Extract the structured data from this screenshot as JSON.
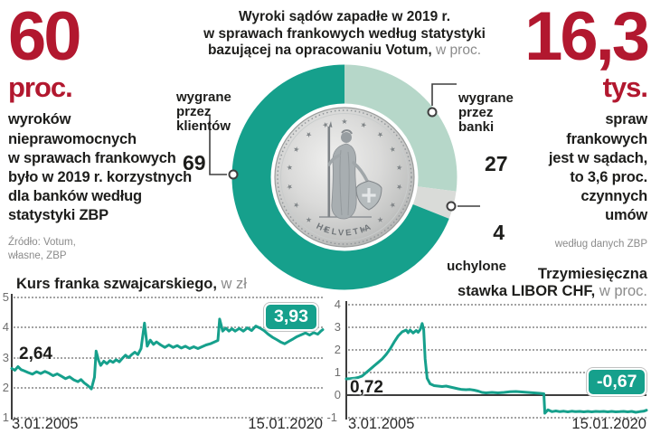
{
  "colors": {
    "red": "#b2182f",
    "teal": "#16a08c",
    "mint": "#b6d7c9",
    "gray_slice": "#d9dbd8",
    "muted": "#8b8b8b"
  },
  "left_stat": {
    "value": "60",
    "unit": "proc.",
    "description": "wyroków\nnieprawomocnych\nw sprawach frankowych\nbyło w 2019 r. korzystnych\ndla banków według\nstatystyki ZBP",
    "source": "Źródło: Votum,\nwłasne, ZBP"
  },
  "right_stat": {
    "value": "16,3",
    "unit": "tys.",
    "description": "spraw\nfrankowych\njest w sądach,\nto 3,6 proc.\nczynnych\numów",
    "source": "według danych ZBP"
  },
  "donut_title": {
    "line1": "Wyroki sądów zapadłe w 2019 r.",
    "line2": "w sprawach frankowych według statystyki",
    "line3_bold": "bazującej na opracowaniu Votum,",
    "line3_light": "w proc."
  },
  "coin": {
    "legend": "HELVETIA"
  },
  "chart_data": [
    {
      "type": "pie",
      "variant": "donut",
      "start_angle": "top",
      "direction": "clockwise",
      "title": "Wyroki sądów zapadłe w 2019 r. w sprawach frankowych według statystyki bazującej na opracowaniu Votum, w proc.",
      "slices": [
        {
          "label": "wygrane\nprzez\nbanki",
          "value": 27,
          "color": "#b6d7c9"
        },
        {
          "label": "uchylone",
          "value": 4,
          "color": "#d9dbd8"
        },
        {
          "label": "wygrane\nprzez\nklientów",
          "value": 69,
          "color": "#16a08c"
        }
      ]
    },
    {
      "type": "line",
      "title_bold": "Kurs franka szwajcarskiego,",
      "title_light": "w zł",
      "color": "#16a08c",
      "x_range": [
        2005.0,
        2020.04
      ],
      "ylim": [
        1,
        5
      ],
      "yticks": [
        5,
        4,
        3,
        2,
        1
      ],
      "grid": "dotted",
      "x_tick_labels": [
        "3.01.2005",
        "15.01.2020"
      ],
      "first_label": "2,64",
      "last_label": "3,93",
      "points": [
        [
          2005.0,
          2.64
        ],
        [
          2005.15,
          2.58
        ],
        [
          2005.3,
          2.7
        ],
        [
          2005.45,
          2.6
        ],
        [
          2005.6,
          2.56
        ],
        [
          2005.8,
          2.5
        ],
        [
          2006.0,
          2.45
        ],
        [
          2006.2,
          2.53
        ],
        [
          2006.4,
          2.47
        ],
        [
          2006.6,
          2.54
        ],
        [
          2006.8,
          2.48
        ],
        [
          2007.0,
          2.4
        ],
        [
          2007.2,
          2.46
        ],
        [
          2007.4,
          2.38
        ],
        [
          2007.6,
          2.3
        ],
        [
          2007.8,
          2.36
        ],
        [
          2008.0,
          2.26
        ],
        [
          2008.2,
          2.2
        ],
        [
          2008.35,
          2.27
        ],
        [
          2008.5,
          2.16
        ],
        [
          2008.7,
          2.06
        ],
        [
          2008.85,
          1.96
        ],
        [
          2009.0,
          2.35
        ],
        [
          2009.08,
          3.22
        ],
        [
          2009.2,
          2.9
        ],
        [
          2009.3,
          2.74
        ],
        [
          2009.45,
          2.88
        ],
        [
          2009.6,
          2.8
        ],
        [
          2009.75,
          2.9
        ],
        [
          2009.9,
          2.84
        ],
        [
          2010.05,
          2.93
        ],
        [
          2010.2,
          2.86
        ],
        [
          2010.35,
          2.98
        ],
        [
          2010.5,
          3.08
        ],
        [
          2010.65,
          3.0
        ],
        [
          2010.8,
          3.1
        ],
        [
          2010.95,
          3.18
        ],
        [
          2011.1,
          3.1
        ],
        [
          2011.25,
          3.3
        ],
        [
          2011.42,
          4.15
        ],
        [
          2011.55,
          3.38
        ],
        [
          2011.7,
          3.58
        ],
        [
          2011.85,
          3.44
        ],
        [
          2012.0,
          3.52
        ],
        [
          2012.2,
          3.42
        ],
        [
          2012.4,
          3.34
        ],
        [
          2012.6,
          3.42
        ],
        [
          2012.8,
          3.34
        ],
        [
          2013.0,
          3.4
        ],
        [
          2013.2,
          3.32
        ],
        [
          2013.4,
          3.38
        ],
        [
          2013.6,
          3.3
        ],
        [
          2013.8,
          3.36
        ],
        [
          2014.0,
          3.3
        ],
        [
          2014.2,
          3.36
        ],
        [
          2014.4,
          3.42
        ],
        [
          2014.6,
          3.46
        ],
        [
          2014.8,
          3.52
        ],
        [
          2014.97,
          3.57
        ],
        [
          2015.05,
          4.28
        ],
        [
          2015.2,
          3.88
        ],
        [
          2015.35,
          3.98
        ],
        [
          2015.5,
          3.88
        ],
        [
          2015.65,
          3.96
        ],
        [
          2015.8,
          3.88
        ],
        [
          2016.0,
          3.97
        ],
        [
          2016.2,
          3.88
        ],
        [
          2016.4,
          3.99
        ],
        [
          2016.6,
          3.9
        ],
        [
          2016.8,
          4.05
        ],
        [
          2017.0,
          3.98
        ],
        [
          2017.2,
          3.9
        ],
        [
          2017.4,
          3.78
        ],
        [
          2017.6,
          3.68
        ],
        [
          2017.8,
          3.6
        ],
        [
          2018.0,
          3.52
        ],
        [
          2018.2,
          3.46
        ],
        [
          2018.4,
          3.54
        ],
        [
          2018.6,
          3.62
        ],
        [
          2018.8,
          3.7
        ],
        [
          2019.0,
          3.76
        ],
        [
          2019.2,
          3.82
        ],
        [
          2019.4,
          3.75
        ],
        [
          2019.6,
          3.83
        ],
        [
          2019.8,
          3.78
        ],
        [
          2019.95,
          3.88
        ],
        [
          2020.04,
          3.93
        ]
      ]
    },
    {
      "type": "line",
      "title_prefix": "Trzymiesięczna",
      "title_bold": "stawka LIBOR CHF,",
      "title_light": "w proc.",
      "color": "#16a08c",
      "x_range": [
        2005.0,
        2020.04
      ],
      "ylim": [
        -1,
        4
      ],
      "yticks": [
        4,
        3,
        2,
        1,
        0,
        -1
      ],
      "grid": "dotted",
      "zero_line": true,
      "x_tick_labels": [
        "3.01.2005",
        "15.01.2020"
      ],
      "first_label": "0,72",
      "last_label": "-0,67",
      "points": [
        [
          2005.0,
          0.72
        ],
        [
          2005.2,
          0.73
        ],
        [
          2005.4,
          0.75
        ],
        [
          2005.6,
          0.78
        ],
        [
          2005.8,
          0.85
        ],
        [
          2006.0,
          1.0
        ],
        [
          2006.2,
          1.15
        ],
        [
          2006.4,
          1.3
        ],
        [
          2006.6,
          1.45
        ],
        [
          2006.8,
          1.6
        ],
        [
          2007.0,
          1.8
        ],
        [
          2007.2,
          2.05
        ],
        [
          2007.4,
          2.35
        ],
        [
          2007.6,
          2.62
        ],
        [
          2007.8,
          2.8
        ],
        [
          2008.0,
          2.88
        ],
        [
          2008.1,
          2.76
        ],
        [
          2008.2,
          2.88
        ],
        [
          2008.35,
          2.75
        ],
        [
          2008.5,
          2.86
        ],
        [
          2008.6,
          2.78
        ],
        [
          2008.7,
          2.9
        ],
        [
          2008.8,
          3.17
        ],
        [
          2008.88,
          2.9
        ],
        [
          2008.95,
          1.6
        ],
        [
          2009.05,
          0.75
        ],
        [
          2009.2,
          0.5
        ],
        [
          2009.4,
          0.42
        ],
        [
          2009.6,
          0.4
        ],
        [
          2009.8,
          0.38
        ],
        [
          2010.0,
          0.4
        ],
        [
          2010.2,
          0.36
        ],
        [
          2010.4,
          0.32
        ],
        [
          2010.6,
          0.28
        ],
        [
          2010.8,
          0.25
        ],
        [
          2011.0,
          0.24
        ],
        [
          2011.2,
          0.25
        ],
        [
          2011.4,
          0.22
        ],
        [
          2011.6,
          0.18
        ],
        [
          2011.8,
          0.12
        ],
        [
          2012.0,
          0.1
        ],
        [
          2012.3,
          0.12
        ],
        [
          2012.6,
          0.1
        ],
        [
          2012.9,
          0.12
        ],
        [
          2013.2,
          0.15
        ],
        [
          2013.5,
          0.16
        ],
        [
          2013.8,
          0.14
        ],
        [
          2014.1,
          0.12
        ],
        [
          2014.4,
          0.1
        ],
        [
          2014.7,
          0.08
        ],
        [
          2014.9,
          0.06
        ],
        [
          2014.95,
          -0.8
        ],
        [
          2015.1,
          -0.65
        ],
        [
          2015.3,
          -0.73
        ],
        [
          2015.5,
          -0.7
        ],
        [
          2015.7,
          -0.73
        ],
        [
          2015.9,
          -0.71
        ],
        [
          2016.1,
          -0.74
        ],
        [
          2016.3,
          -0.71
        ],
        [
          2016.5,
          -0.73
        ],
        [
          2016.7,
          -0.72
        ],
        [
          2016.9,
          -0.74
        ],
        [
          2017.1,
          -0.72
        ],
        [
          2017.3,
          -0.74
        ],
        [
          2017.5,
          -0.72
        ],
        [
          2017.7,
          -0.73
        ],
        [
          2017.9,
          -0.72
        ],
        [
          2018.1,
          -0.74
        ],
        [
          2018.3,
          -0.72
        ],
        [
          2018.5,
          -0.74
        ],
        [
          2018.7,
          -0.73
        ],
        [
          2018.9,
          -0.72
        ],
        [
          2019.1,
          -0.74
        ],
        [
          2019.3,
          -0.72
        ],
        [
          2019.5,
          -0.76
        ],
        [
          2019.7,
          -0.73
        ],
        [
          2019.9,
          -0.71
        ],
        [
          2020.04,
          -0.67
        ]
      ]
    }
  ]
}
